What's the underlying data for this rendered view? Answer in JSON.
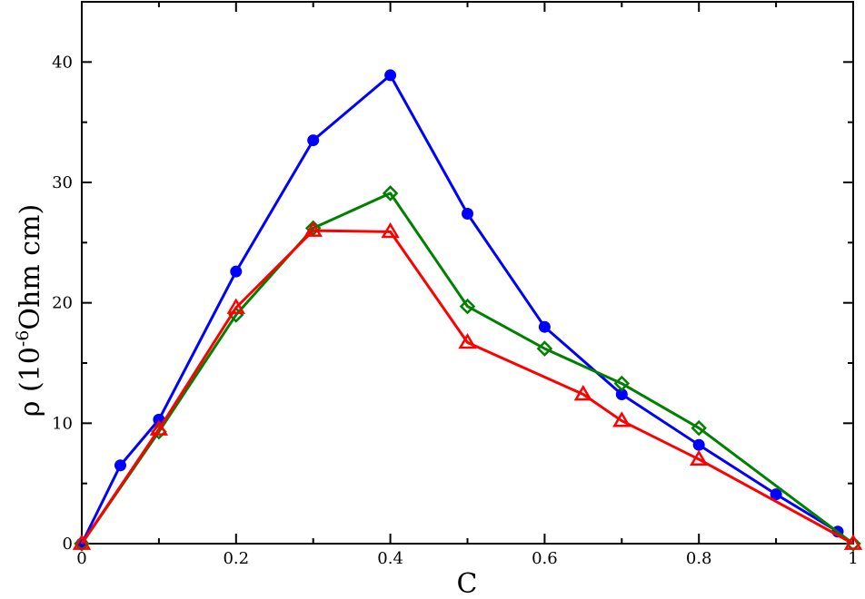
{
  "chart_data": {
    "type": "line",
    "title": "",
    "xlabel": "C",
    "ylabel": {
      "prefix": "ρ (10",
      "exponent": "-6",
      "suffix": "Ohm cm)"
    },
    "xlim": [
      0,
      1
    ],
    "ylim": [
      0,
      45
    ],
    "x_ticks": [
      0,
      0.2,
      0.4,
      0.6,
      0.8,
      1
    ],
    "x_tick_labels": [
      "0",
      "0.2",
      "0.4",
      "0.6",
      "0.8",
      "1"
    ],
    "y_ticks": [
      0,
      10,
      20,
      30,
      40
    ],
    "y_tick_labels": [
      "0",
      "10",
      "20",
      "30",
      "40"
    ],
    "grid": false,
    "legend": "none",
    "series": [
      {
        "color": "#0000ff",
        "marker": "filled-circle",
        "x": [
          0,
          0.05,
          0.1,
          0.2,
          0.3,
          0.4,
          0.5,
          0.6,
          0.7,
          0.8,
          0.9,
          0.98
        ],
        "y": [
          0,
          6.5,
          10.3,
          22.6,
          33.5,
          38.9,
          27.4,
          18.0,
          12.4,
          8.2,
          4.1,
          1.0
        ]
      },
      {
        "color": "#008000",
        "marker": "open-diamond",
        "x": [
          0,
          0.1,
          0.2,
          0.3,
          0.4,
          0.5,
          0.6,
          0.7,
          0.8,
          1.0
        ],
        "y": [
          0,
          9.3,
          19.0,
          26.2,
          29.1,
          19.7,
          16.2,
          13.3,
          9.6,
          0
        ]
      },
      {
        "color": "#ff0000",
        "marker": "open-triangle",
        "x": [
          0,
          0.1,
          0.2,
          0.3,
          0.4,
          0.5,
          0.65,
          0.7,
          0.8,
          1.0
        ],
        "y": [
          0,
          9.5,
          19.6,
          26.0,
          25.9,
          16.7,
          12.4,
          10.2,
          7.0,
          0
        ]
      }
    ]
  }
}
